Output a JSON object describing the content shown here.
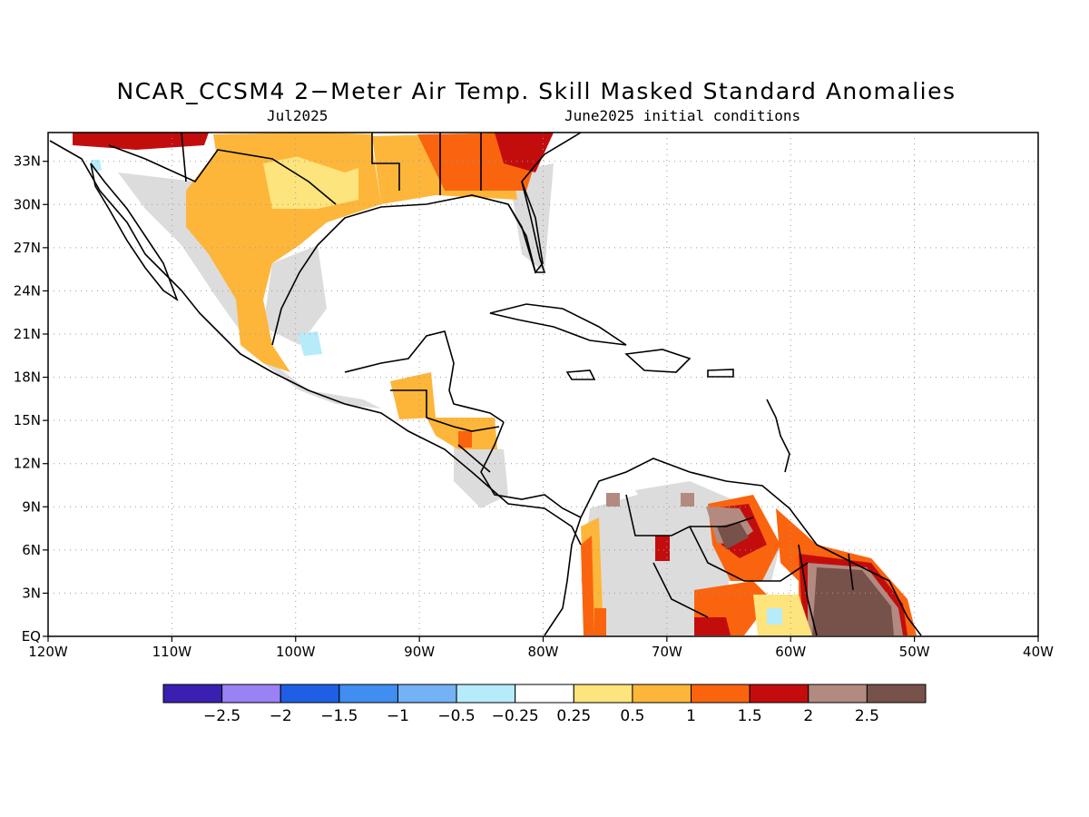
{
  "title": "NCAR_CCSM4 2−Meter Air Temp. Skill Masked Standard Anomalies",
  "subtitle_left": "Jul2025",
  "subtitle_right": "June2025 initial conditions",
  "map": {
    "lon_range": [
      -120,
      -40
    ],
    "lat_range": [
      0,
      35
    ],
    "lat_ticks": [
      {
        "value": 33,
        "label": "33N"
      },
      {
        "value": 30,
        "label": "30N"
      },
      {
        "value": 27,
        "label": "27N"
      },
      {
        "value": 24,
        "label": "24N"
      },
      {
        "value": 21,
        "label": "21N"
      },
      {
        "value": 18,
        "label": "18N"
      },
      {
        "value": 15,
        "label": "15N"
      },
      {
        "value": 12,
        "label": "12N"
      },
      {
        "value": 9,
        "label": "9N"
      },
      {
        "value": 6,
        "label": "6N"
      },
      {
        "value": 3,
        "label": "3N"
      },
      {
        "value": 0,
        "label": "EQ"
      }
    ],
    "lon_ticks": [
      {
        "value": -120,
        "label": "120W"
      },
      {
        "value": -110,
        "label": "110W"
      },
      {
        "value": -100,
        "label": "100W"
      },
      {
        "value": -90,
        "label": "90W"
      },
      {
        "value": -80,
        "label": "80W"
      },
      {
        "value": -70,
        "label": "70W"
      },
      {
        "value": -60,
        "label": "60W"
      },
      {
        "value": -50,
        "label": "50W"
      },
      {
        "value": -40,
        "label": "40W"
      }
    ],
    "grid": "dotted"
  },
  "colorbar": {
    "colors": [
      "#3a1fb0",
      "#9a82f5",
      "#1f5fe6",
      "#3f8ef0",
      "#72b2f5",
      "#b6ecfa",
      "#ffffff",
      "#fde47c",
      "#fdb63a",
      "#fa640f",
      "#c30d0d",
      "#b28a80",
      "#77524a"
    ],
    "labels": [
      "−2.5",
      "−2",
      "−1.5",
      "−1",
      "−0.5",
      "−0.25",
      "0.25",
      "0.5",
      "1",
      "1.5",
      "2",
      "2.5"
    ]
  },
  "colors": {
    "land_mask": "#dcdcdc",
    "coast": "#000000"
  }
}
